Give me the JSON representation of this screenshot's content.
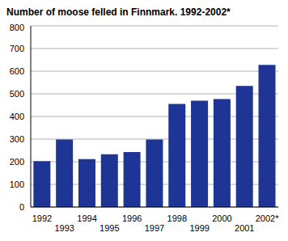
{
  "chart_data": {
    "type": "bar",
    "title": "Number of moose felled in Finnmark. 1992-2002*",
    "categories": [
      "1992",
      "1993",
      "1994",
      "1995",
      "1996",
      "1997",
      "1998",
      "1999",
      "2000",
      "2001",
      "2002*"
    ],
    "values": [
      203,
      298,
      212,
      233,
      243,
      298,
      455,
      470,
      477,
      535,
      628
    ],
    "color": "#1f3595",
    "ylim": [
      0,
      800
    ],
    "yticks": [
      0,
      100,
      200,
      300,
      400,
      500,
      600,
      700,
      800
    ],
    "grid": true
  }
}
